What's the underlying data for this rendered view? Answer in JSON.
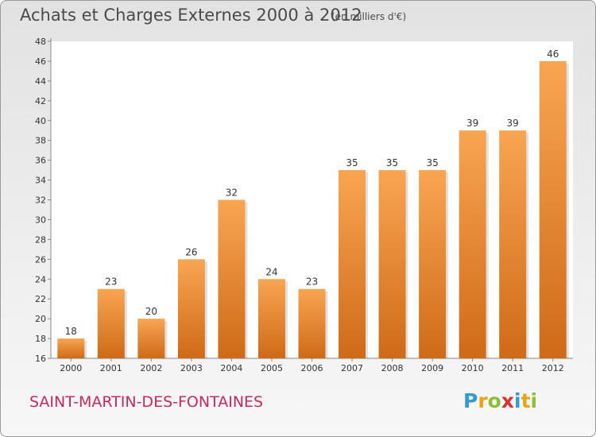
{
  "title": "Achats et Charges Externes 2000 à 2012",
  "subtitle": "(en milliers d'€)",
  "commune": "SAINT-MARTIN-DES-FONTAINES",
  "logo": {
    "letters": [
      "P",
      "r",
      "o",
      "x",
      "i",
      "t",
      "i"
    ],
    "colors": [
      "#2f9bd6",
      "#e8a317",
      "#8bbf3a",
      "#d93030",
      "#2f9bd6",
      "#e8a317",
      "#8bbf3a"
    ]
  },
  "colors": {
    "bar_top": "#f8a552",
    "bar_bottom": "#cf6a17",
    "commune": "#c8285a"
  },
  "chart_data": {
    "type": "bar",
    "title": "Achats et Charges Externes 2000 à 2012",
    "subtitle": "(en milliers d'€)",
    "categories": [
      "2000",
      "2001",
      "2002",
      "2003",
      "2004",
      "2005",
      "2006",
      "2007",
      "2008",
      "2009",
      "2010",
      "2011",
      "2012"
    ],
    "values": [
      18,
      23,
      20,
      26,
      32,
      24,
      23,
      35,
      35,
      35,
      39,
      39,
      46
    ],
    "ylim": [
      16,
      48
    ],
    "yticks": [
      16,
      18,
      20,
      22,
      24,
      26,
      28,
      30,
      32,
      34,
      36,
      38,
      40,
      42,
      44,
      46,
      48
    ],
    "grid": false,
    "data_labels": true
  }
}
